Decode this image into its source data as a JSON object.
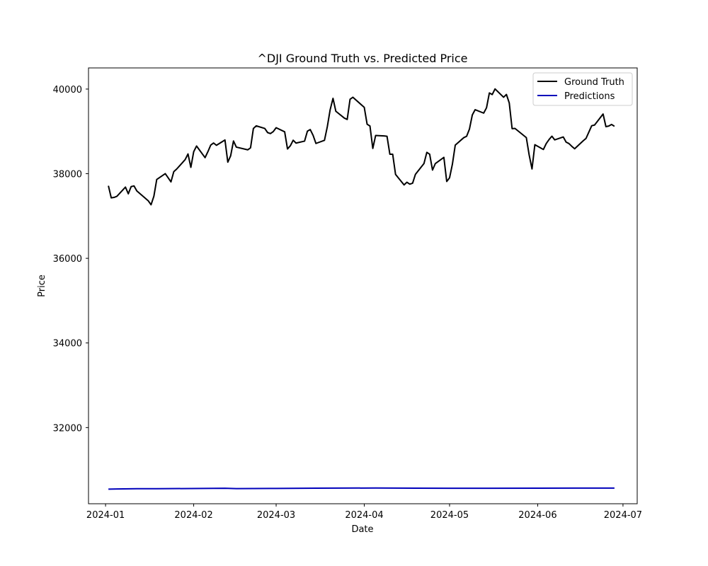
{
  "chart_data": {
    "type": "line",
    "title": "^DJI Ground Truth vs. Predicted Price",
    "xlabel": "Date",
    "ylabel": "Price",
    "xlim": [
      "2023-12-26",
      "2024-07-06"
    ],
    "ylim": [
      30200,
      40500
    ],
    "x_ticks": [
      "2024-01",
      "2024-02",
      "2024-03",
      "2024-04",
      "2024-05",
      "2024-06",
      "2024-07"
    ],
    "y_ticks": [
      32000,
      34000,
      36000,
      38000,
      40000
    ],
    "grid": false,
    "legend_position": "upper right",
    "series": [
      {
        "name": "Ground Truth",
        "color": "#000000",
        "points": [
          [
            "2024-01-02",
            37715
          ],
          [
            "2024-01-03",
            37430
          ],
          [
            "2024-01-04",
            37440
          ],
          [
            "2024-01-05",
            37466
          ],
          [
            "2024-01-08",
            37683
          ],
          [
            "2024-01-09",
            37525
          ],
          [
            "2024-01-10",
            37695
          ],
          [
            "2024-01-11",
            37711
          ],
          [
            "2024-01-12",
            37593
          ],
          [
            "2024-01-16",
            37361
          ],
          [
            "2024-01-17",
            37266
          ],
          [
            "2024-01-18",
            37469
          ],
          [
            "2024-01-19",
            37863
          ],
          [
            "2024-01-22",
            38001
          ],
          [
            "2024-01-23",
            37905
          ],
          [
            "2024-01-24",
            37806
          ],
          [
            "2024-01-25",
            38049
          ],
          [
            "2024-01-26",
            38109
          ],
          [
            "2024-01-29",
            38333
          ],
          [
            "2024-01-30",
            38467
          ],
          [
            "2024-01-31",
            38150
          ],
          [
            "2024-02-01",
            38519
          ],
          [
            "2024-02-02",
            38654
          ],
          [
            "2024-02-05",
            38380
          ],
          [
            "2024-02-06",
            38521
          ],
          [
            "2024-02-07",
            38677
          ],
          [
            "2024-02-08",
            38726
          ],
          [
            "2024-02-09",
            38671
          ],
          [
            "2024-02-12",
            38797
          ],
          [
            "2024-02-13",
            38273
          ],
          [
            "2024-02-14",
            38424
          ],
          [
            "2024-02-15",
            38773
          ],
          [
            "2024-02-16",
            38628
          ],
          [
            "2024-02-20",
            38564
          ],
          [
            "2024-02-21",
            38612
          ],
          [
            "2024-02-22",
            39069
          ],
          [
            "2024-02-23",
            39131
          ],
          [
            "2024-02-26",
            39069
          ],
          [
            "2024-02-27",
            38972
          ],
          [
            "2024-02-28",
            38949
          ],
          [
            "2024-02-29",
            38996
          ],
          [
            "2024-03-01",
            39087
          ],
          [
            "2024-03-04",
            38990
          ],
          [
            "2024-03-05",
            38585
          ],
          [
            "2024-03-06",
            38661
          ],
          [
            "2024-03-07",
            38791
          ],
          [
            "2024-03-08",
            38723
          ],
          [
            "2024-03-11",
            38770
          ],
          [
            "2024-03-12",
            39005
          ],
          [
            "2024-03-13",
            39043
          ],
          [
            "2024-03-14",
            38906
          ],
          [
            "2024-03-15",
            38715
          ],
          [
            "2024-03-18",
            38790
          ],
          [
            "2024-03-19",
            39111
          ],
          [
            "2024-03-20",
            39512
          ],
          [
            "2024-03-21",
            39781
          ],
          [
            "2024-03-22",
            39476
          ],
          [
            "2024-03-25",
            39314
          ],
          [
            "2024-03-26",
            39283
          ],
          [
            "2024-03-27",
            39760
          ],
          [
            "2024-03-28",
            39807
          ],
          [
            "2024-04-01",
            39567
          ],
          [
            "2024-04-02",
            39170
          ],
          [
            "2024-04-03",
            39127
          ],
          [
            "2024-04-04",
            38597
          ],
          [
            "2024-04-05",
            38904
          ],
          [
            "2024-04-08",
            38892
          ],
          [
            "2024-04-09",
            38884
          ],
          [
            "2024-04-10",
            38461
          ],
          [
            "2024-04-11",
            38459
          ],
          [
            "2024-04-12",
            37983
          ],
          [
            "2024-04-15",
            37735
          ],
          [
            "2024-04-16",
            37799
          ],
          [
            "2024-04-17",
            37753
          ],
          [
            "2024-04-18",
            37775
          ],
          [
            "2024-04-19",
            37986
          ],
          [
            "2024-04-22",
            38240
          ],
          [
            "2024-04-23",
            38504
          ],
          [
            "2024-04-24",
            38461
          ],
          [
            "2024-04-25",
            38086
          ],
          [
            "2024-04-26",
            38240
          ],
          [
            "2024-04-29",
            38386
          ],
          [
            "2024-04-30",
            37816
          ],
          [
            "2024-05-01",
            37903
          ],
          [
            "2024-05-02",
            38226
          ],
          [
            "2024-05-03",
            38676
          ],
          [
            "2024-05-06",
            38852
          ],
          [
            "2024-05-07",
            38884
          ],
          [
            "2024-05-08",
            39056
          ],
          [
            "2024-05-09",
            39388
          ],
          [
            "2024-05-10",
            39513
          ],
          [
            "2024-05-13",
            39432
          ],
          [
            "2024-05-14",
            39558
          ],
          [
            "2024-05-15",
            39908
          ],
          [
            "2024-05-16",
            39870
          ],
          [
            "2024-05-17",
            40004
          ],
          [
            "2024-05-20",
            39807
          ],
          [
            "2024-05-21",
            39873
          ],
          [
            "2024-05-22",
            39671
          ],
          [
            "2024-05-23",
            39065
          ],
          [
            "2024-05-24",
            39070
          ],
          [
            "2024-05-28",
            38853
          ],
          [
            "2024-05-29",
            38442
          ],
          [
            "2024-05-30",
            38112
          ],
          [
            "2024-05-31",
            38686
          ],
          [
            "2024-06-03",
            38572
          ],
          [
            "2024-06-04",
            38712
          ],
          [
            "2024-06-05",
            38808
          ],
          [
            "2024-06-06",
            38886
          ],
          [
            "2024-06-07",
            38799
          ],
          [
            "2024-06-10",
            38868
          ],
          [
            "2024-06-11",
            38747
          ],
          [
            "2024-06-12",
            38712
          ],
          [
            "2024-06-13",
            38647
          ],
          [
            "2024-06-14",
            38589
          ],
          [
            "2024-06-17",
            38778
          ],
          [
            "2024-06-18",
            38834
          ],
          [
            "2024-06-20",
            39134
          ],
          [
            "2024-06-21",
            39150
          ],
          [
            "2024-06-24",
            39411
          ],
          [
            "2024-06-25",
            39112
          ],
          [
            "2024-06-26",
            39127
          ],
          [
            "2024-06-27",
            39164
          ],
          [
            "2024-06-28",
            39119
          ]
        ]
      },
      {
        "name": "Predictions",
        "color": "#0000bb",
        "points": [
          [
            "2024-01-02",
            30545
          ],
          [
            "2024-01-05",
            30550
          ],
          [
            "2024-01-12",
            30555
          ],
          [
            "2024-01-19",
            30555
          ],
          [
            "2024-01-31",
            30560
          ],
          [
            "2024-02-12",
            30565
          ],
          [
            "2024-02-16",
            30558
          ],
          [
            "2024-03-01",
            30562
          ],
          [
            "2024-03-15",
            30568
          ],
          [
            "2024-04-05",
            30572
          ],
          [
            "2024-04-19",
            30568
          ],
          [
            "2024-05-01",
            30566
          ],
          [
            "2024-05-15",
            30566
          ],
          [
            "2024-06-01",
            30568
          ],
          [
            "2024-06-14",
            30570
          ],
          [
            "2024-06-28",
            30570
          ]
        ]
      }
    ]
  }
}
